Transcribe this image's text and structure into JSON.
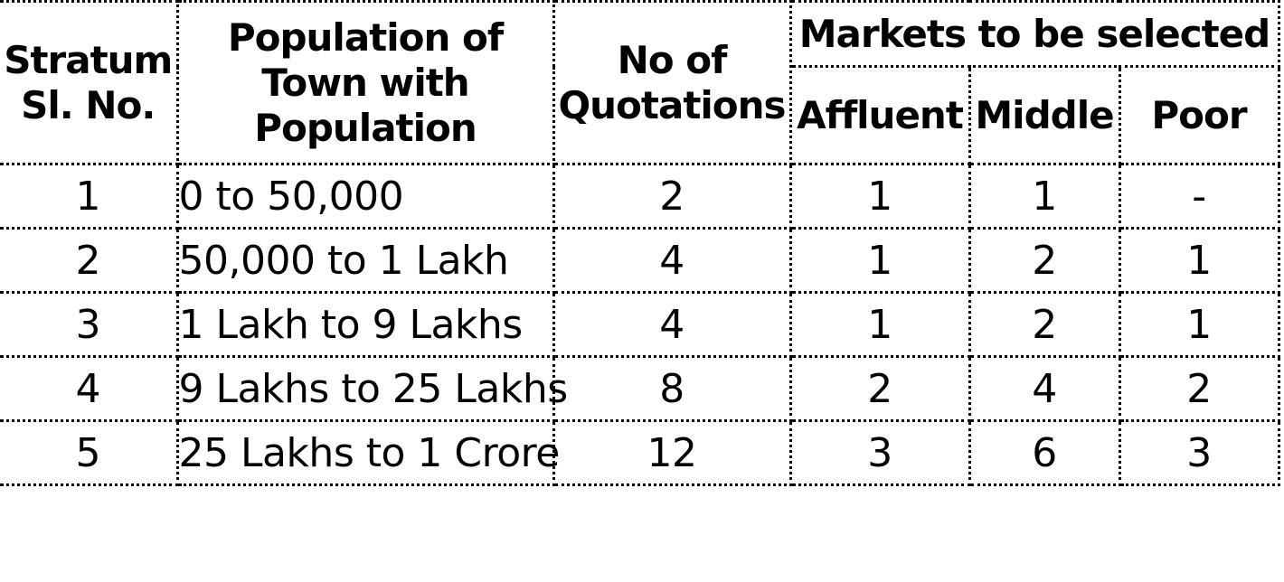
{
  "table": {
    "headers": {
      "stratum": [
        "Stratum",
        "Sl. No."
      ],
      "population": [
        "Population of",
        "Town with",
        "Population"
      ],
      "quotations": [
        "No of",
        "Quotations"
      ],
      "markets": "Markets to be selected",
      "affluent": "Affluent",
      "middle": "Middle",
      "poor": "Poor"
    },
    "rows": [
      {
        "sl": "1",
        "population": "0 to 50,000",
        "quotations": "2",
        "affluent": "1",
        "middle": "1",
        "poor": "-"
      },
      {
        "sl": "2",
        "population": "50,000 to 1 Lakh",
        "quotations": "4",
        "affluent": "1",
        "middle": "2",
        "poor": "1"
      },
      {
        "sl": "3",
        "population": "1 Lakh to 9 Lakhs",
        "quotations": "4",
        "affluent": "1",
        "middle": "2",
        "poor": "1"
      },
      {
        "sl": "4",
        "population": "9 Lakhs to 25 Lakhs",
        "quotations": "8",
        "affluent": "2",
        "middle": "4",
        "poor": "2"
      },
      {
        "sl": "5",
        "population": "25 Lakhs to 1 Crore",
        "quotations": "12",
        "affluent": "3",
        "middle": "6",
        "poor": "3"
      }
    ]
  }
}
